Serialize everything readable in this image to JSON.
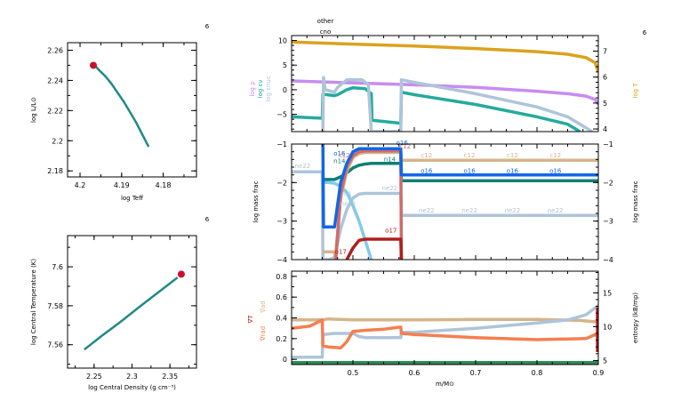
{
  "chart_data": [
    {
      "id": "hr",
      "type": "line",
      "corner_label": "6",
      "xlabel": "log Teff",
      "ylabel": "log L/L⊙",
      "xlim": [
        4.203,
        4.172
      ],
      "ylim": [
        2.176,
        2.265
      ],
      "xticks": [
        4.2,
        4.19,
        4.18
      ],
      "xtick_labels": [
        "4.2",
        "4.19",
        "4.18"
      ],
      "yticks": [
        2.18,
        2.2,
        2.22,
        2.24,
        2.26
      ],
      "ytick_labels": [
        "2.18",
        "2.2",
        "2.22",
        "2.24",
        "2.26"
      ],
      "series": [
        {
          "name": "track",
          "color": "#1f8a85",
          "x": [
            4.1965,
            4.1955,
            4.194,
            4.1925,
            4.191,
            4.1895,
            4.188,
            4.1865,
            4.185,
            4.1835
          ],
          "y": [
            2.25,
            2.247,
            2.243,
            2.238,
            2.232,
            2.226,
            2.219,
            2.212,
            2.204,
            2.196
          ]
        }
      ],
      "marker": {
        "x": 4.1968,
        "y": 2.25,
        "color": "#c8102e"
      }
    },
    {
      "id": "center",
      "type": "line",
      "corner_label": "6",
      "xlabel": "log Central Density (g cm⁻³)",
      "ylabel": "log Central Temperature (K)",
      "xlim": [
        2.215,
        2.385
      ],
      "ylim": [
        7.548,
        7.616
      ],
      "xticks": [
        2.25,
        2.3,
        2.35
      ],
      "xtick_labels": [
        "2.25",
        "2.3",
        "2.35"
      ],
      "yticks": [
        7.56,
        7.58,
        7.6
      ],
      "ytick_labels": [
        "7.56",
        "7.58",
        "7.6"
      ],
      "series": [
        {
          "name": "track",
          "color": "#1f8a85",
          "x": [
            2.237,
            2.26,
            2.285,
            2.31,
            2.335,
            2.36
          ],
          "y": [
            7.5575,
            7.5645,
            7.5718,
            7.5795,
            7.587,
            7.5945
          ]
        }
      ],
      "marker": {
        "x": 2.365,
        "y": 7.5962,
        "color": "#c8102e"
      }
    },
    {
      "id": "profile-top",
      "type": "line",
      "corner_label": "6",
      "top_labels": [
        "other",
        "cno"
      ],
      "xlim": [
        0.4,
        0.9
      ],
      "ylim": [
        -8.5,
        11
      ],
      "yticks": [
        -5,
        0,
        5,
        10
      ],
      "ytick_labels": [
        "−5",
        "0",
        "5",
        "10"
      ],
      "y2lim": [
        3.9,
        7.6
      ],
      "y2ticks": [
        4,
        5,
        6,
        7
      ],
      "y2tick_labels": [
        "4",
        "5",
        "6",
        "7"
      ],
      "left_labels": [
        {
          "text": "log ρ",
          "color": "#c78cf0"
        },
        {
          "text": "log εν",
          "color": "#24ab9c"
        },
        {
          "text": "log εnuc",
          "color": "#aec4da"
        }
      ],
      "right_label": {
        "text": "log T",
        "color": "#dba21c"
      },
      "series": [
        {
          "name": "log T",
          "axis": "right",
          "color": "#dba21c",
          "x": [
            0.4,
            0.5,
            0.6,
            0.7,
            0.8,
            0.85,
            0.88,
            0.895,
            0.9
          ],
          "y": [
            7.35,
            7.27,
            7.2,
            7.1,
            6.98,
            6.88,
            6.75,
            6.55,
            6.2
          ]
        },
        {
          "name": "log rho",
          "axis": "left",
          "color": "#c78cf0",
          "x": [
            0.4,
            0.5,
            0.6,
            0.7,
            0.8,
            0.85,
            0.88,
            0.895,
            0.9
          ],
          "y": [
            1.8,
            1.4,
            1.0,
            0.5,
            -0.3,
            -0.8,
            -1.3,
            -2.0,
            -3.0
          ]
        },
        {
          "name": "log eps_nu",
          "axis": "left",
          "color": "#24ab9c",
          "x": [
            0.4,
            0.45,
            0.451,
            0.47,
            0.475,
            0.49,
            0.5,
            0.52,
            0.53,
            0.531,
            0.578,
            0.579,
            0.6,
            0.7,
            0.8,
            0.85,
            0.87
          ],
          "y": [
            -5.5,
            -5.8,
            -0.9,
            -1.2,
            -1.0,
            0.0,
            0.4,
            0.2,
            -0.8,
            -6.2,
            -6.8,
            -0.5,
            -1.0,
            -3.0,
            -5.5,
            -7.0,
            -8.5
          ]
        },
        {
          "name": "log eps_nuc",
          "axis": "left",
          "color": "#aec4da",
          "x": [
            0.451,
            0.452,
            0.455,
            0.47,
            0.475,
            0.49,
            0.5,
            0.515,
            0.525,
            0.53,
            0.531,
            0.578,
            0.579,
            0.6,
            0.7,
            0.8,
            0.85,
            0.89
          ],
          "y": [
            -8.5,
            2.5,
            0.0,
            -0.5,
            0.5,
            2.0,
            2.0,
            2.0,
            1.0,
            -8.5,
            -8.5,
            -8.5,
            2.0,
            1.5,
            -0.8,
            -3.5,
            -5.5,
            -8.5
          ]
        }
      ]
    },
    {
      "id": "profile-mid",
      "type": "line",
      "xlim": [
        0.4,
        0.9
      ],
      "ylim": [
        -4,
        -1
      ],
      "yticks": [
        -4,
        -3,
        -2,
        -1
      ],
      "ytick_labels": [
        "−4",
        "−3",
        "−2",
        "−1"
      ],
      "ylabel": "log mass frac",
      "y2label": "log mass frac",
      "series": [
        {
          "name": "ne22",
          "color": "#aec4da",
          "x": [
            0.4,
            0.45,
            0.451,
            0.46,
            0.47,
            0.48,
            0.49,
            0.5,
            0.51,
            0.52,
            0.578,
            0.579,
            0.9
          ],
          "y": [
            -1.72,
            -1.72,
            -4.0,
            -4.0,
            -3.95,
            -3.2,
            -2.7,
            -2.4,
            -2.3,
            -2.28,
            -2.28,
            -2.85,
            -2.85
          ]
        },
        {
          "name": "h1",
          "color": "#86c8ec",
          "x": [
            0.451,
            0.46,
            0.47,
            0.48,
            0.49,
            0.5,
            0.51,
            0.52,
            0.53
          ],
          "y": [
            -2.0,
            -2.0,
            -2.02,
            -2.1,
            -2.25,
            -2.6,
            -3.0,
            -3.5,
            -4.0
          ]
        },
        {
          "name": "n14",
          "color": "#117f76",
          "x": [
            0.451,
            0.47,
            0.48,
            0.49,
            0.5,
            0.51,
            0.52,
            0.53,
            0.578,
            0.579,
            0.9
          ],
          "y": [
            -1.92,
            -1.92,
            -1.85,
            -1.75,
            -1.62,
            -1.55,
            -1.52,
            -1.5,
            -1.5,
            -1.95,
            -1.95
          ]
        },
        {
          "name": "c12",
          "color": "#d5b48a",
          "x": [
            0.451,
            0.47,
            0.471,
            0.48,
            0.49,
            0.5,
            0.51,
            0.52,
            0.578,
            0.579,
            0.9
          ],
          "y": [
            -3.8,
            -3.8,
            -4.0,
            -2.4,
            -1.7,
            -1.35,
            -1.25,
            -1.22,
            -1.22,
            -1.42,
            -1.42
          ]
        },
        {
          "name": "c13",
          "color": "#cf6b6b",
          "x": [
            0.472,
            0.48,
            0.49,
            0.5,
            0.51,
            0.52,
            0.578,
            0.579
          ],
          "y": [
            -4.0,
            -2.3,
            -1.6,
            -1.3,
            -1.2,
            -1.18,
            -1.18,
            -4.0
          ]
        },
        {
          "name": "o16",
          "color": "#1166e6",
          "x": [
            0.451,
            0.452,
            0.47,
            0.48,
            0.49,
            0.5,
            0.51,
            0.52,
            0.578,
            0.579,
            0.9
          ],
          "y": [
            -1.0,
            -3.15,
            -3.15,
            -2.0,
            -1.5,
            -1.2,
            -1.12,
            -1.12,
            -1.12,
            -1.8,
            -1.8
          ]
        },
        {
          "name": "o17",
          "color": "#b01e1e",
          "x": [
            0.49,
            0.5,
            0.51,
            0.52,
            0.578,
            0.579
          ],
          "y": [
            -4.0,
            -3.7,
            -3.5,
            -3.47,
            -3.47,
            -4.0
          ]
        }
      ],
      "annotations": [
        {
          "text": "ne22",
          "color": "#aec4da",
          "x": 0.418,
          "y": -1.62
        },
        {
          "text": "o16",
          "color": "#1166e6",
          "x": 0.478,
          "y": -1.3
        },
        {
          "text": "c12",
          "color": "#cf6b6b",
          "x": 0.486,
          "y": -1.35
        },
        {
          "text": "n14",
          "color": "#117f76",
          "x": 0.478,
          "y": -1.5
        },
        {
          "text": "h1",
          "color": "#86c8ec",
          "x": 0.492,
          "y": -2.35
        },
        {
          "text": "ne22",
          "color": "#aec4da",
          "x": 0.492,
          "y": -2.6
        },
        {
          "text": "o17",
          "color": "#b01e1e",
          "x": 0.48,
          "y": -3.85
        },
        {
          "text": "o16",
          "color": "#1166e6",
          "x": 0.58,
          "y": -1.02
        },
        {
          "text": "c12",
          "color": "#cf6b6b",
          "x": 0.585,
          "y": -1.12
        },
        {
          "text": "n14",
          "color": "#117f76",
          "x": 0.56,
          "y": -1.45
        },
        {
          "text": "ne22",
          "color": "#aec4da",
          "x": 0.56,
          "y": -2.2
        },
        {
          "text": "o17",
          "color": "#b01e1e",
          "x": 0.562,
          "y": -3.3
        },
        {
          "text": "c12",
          "color": "#d5b48a",
          "x": 0.62,
          "y": -1.35
        },
        {
          "text": "c12",
          "color": "#d5b48a",
          "x": 0.69,
          "y": -1.35
        },
        {
          "text": "c12",
          "color": "#d5b48a",
          "x": 0.76,
          "y": -1.35
        },
        {
          "text": "c12",
          "color": "#d5b48a",
          "x": 0.83,
          "y": -1.35
        },
        {
          "text": "o16",
          "color": "#1166e6",
          "x": 0.62,
          "y": -1.75
        },
        {
          "text": "o16",
          "color": "#1166e6",
          "x": 0.69,
          "y": -1.75
        },
        {
          "text": "o16",
          "color": "#1166e6",
          "x": 0.76,
          "y": -1.75
        },
        {
          "text": "o16",
          "color": "#1166e6",
          "x": 0.83,
          "y": -1.75
        },
        {
          "text": "ne22",
          "color": "#aec4da",
          "x": 0.62,
          "y": -2.78
        },
        {
          "text": "ne22",
          "color": "#aec4da",
          "x": 0.69,
          "y": -2.78
        },
        {
          "text": "ne22",
          "color": "#aec4da",
          "x": 0.76,
          "y": -2.78
        },
        {
          "text": "ne22",
          "color": "#aec4da",
          "x": 0.83,
          "y": -2.78
        }
      ]
    },
    {
      "id": "profile-bottom",
      "type": "line",
      "xlim": [
        0.4,
        0.9
      ],
      "xticks": [
        0.5,
        0.6,
        0.7,
        0.8,
        0.9
      ],
      "xtick_labels": [
        "0.5",
        "0.6",
        "0.7",
        "0.8",
        "0.9"
      ],
      "xlabel": "m/M⊙",
      "ylim": [
        -0.05,
        0.85
      ],
      "yticks": [
        0,
        0.2,
        0.4,
        0.6,
        0.8
      ],
      "ytick_labels": [
        "0",
        "0.2",
        "0.4",
        "0.6",
        "0.8"
      ],
      "y2lim": [
        4.4,
        18.2
      ],
      "y2ticks": [
        5,
        10,
        15
      ],
      "y2tick_labels": [
        "5",
        "10",
        "15"
      ],
      "y2label": "entropy (kB/mp)",
      "left_labels": [
        {
          "text": "∇ad",
          "color": "#d5b48a"
        },
        {
          "text": "∇T",
          "color": "#b01e1e"
        },
        {
          "text": "∇rad",
          "color": "#f57e4f"
        }
      ],
      "series": [
        {
          "name": "grad_ad",
          "axis": "left",
          "color": "#d5b48a",
          "x": [
            0.4,
            0.45,
            0.46,
            0.5,
            0.6,
            0.7,
            0.8,
            0.87,
            0.9
          ],
          "y": [
            0.38,
            0.38,
            0.39,
            0.38,
            0.38,
            0.385,
            0.385,
            0.375,
            0.36
          ]
        },
        {
          "name": "entropy",
          "axis": "left",
          "color": "#aec4da",
          "x": [
            0.4,
            0.45,
            0.451,
            0.47,
            0.5,
            0.51,
            0.52,
            0.55,
            0.578,
            0.579,
            0.6,
            0.7,
            0.8,
            0.85,
            0.88,
            0.9
          ],
          "y": [
            0.02,
            0.02,
            0.24,
            0.25,
            0.25,
            0.22,
            0.21,
            0.21,
            0.21,
            0.26,
            0.26,
            0.3,
            0.35,
            0.38,
            0.43,
            0.52
          ]
        },
        {
          "name": "grad_rad",
          "axis": "left",
          "color": "#f57e4f",
          "x": [
            0.4,
            0.43,
            0.45,
            0.451,
            0.46,
            0.48,
            0.49,
            0.5,
            0.52,
            0.55,
            0.575,
            0.578,
            0.579,
            0.6,
            0.7,
            0.8,
            0.88,
            0.895,
            0.9
          ],
          "y": [
            0.3,
            0.32,
            0.38,
            0.13,
            0.12,
            0.11,
            0.17,
            0.27,
            0.28,
            0.29,
            0.31,
            0.31,
            0.25,
            0.24,
            0.21,
            0.19,
            0.2,
            0.24,
            0.22
          ]
        },
        {
          "name": "grad_T",
          "axis": "left",
          "color": "#b01e1e",
          "x": [
            0.899,
            0.899
          ],
          "y": [
            0.07,
            0.5
          ]
        },
        {
          "name": "mixing",
          "axis": "left",
          "color": "#2e8b57",
          "x": [
            0.4,
            0.9
          ],
          "y": [
            -0.03,
            -0.03
          ]
        }
      ]
    }
  ]
}
